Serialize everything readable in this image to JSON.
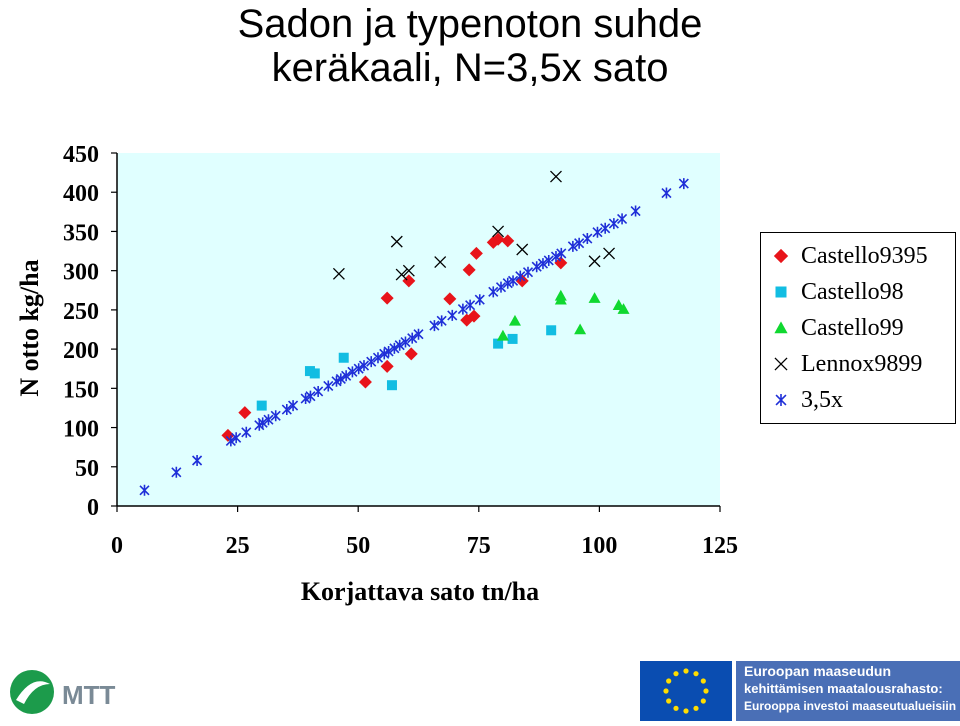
{
  "chart_data": {
    "type": "scatter",
    "title": [
      "Sadon ja typenoton suhde",
      "keräkaali, N=3,5x sato"
    ],
    "xlabel": "Korjattava sato tn/ha",
    "ylabel": "N otto kg/ha",
    "xlim": [
      0,
      125
    ],
    "ylim": [
      0,
      450
    ],
    "xticks": [
      "0",
      "25",
      "50",
      "75",
      "100",
      "125"
    ],
    "yticks": [
      "0",
      "50",
      "100",
      "150",
      "200",
      "250",
      "300",
      "350",
      "400",
      "450"
    ],
    "plot_background": "#e0ffff",
    "legend_position": "right",
    "series": [
      {
        "name": "Castello9395",
        "marker": "diamond",
        "color": "#e8141a",
        "points": [
          [
            23,
            90
          ],
          [
            26.5,
            119
          ],
          [
            51.5,
            158
          ],
          [
            56,
            178
          ],
          [
            56,
            265
          ],
          [
            60.5,
            287
          ],
          [
            61,
            194
          ],
          [
            69,
            264
          ],
          [
            72.5,
            237
          ],
          [
            73,
            301
          ],
          [
            74,
            242
          ],
          [
            74.5,
            322
          ],
          [
            78,
            336
          ],
          [
            79,
            340
          ],
          [
            81,
            338
          ],
          [
            84,
            287
          ],
          [
            92,
            310
          ]
        ]
      },
      {
        "name": "Castello98",
        "marker": "square",
        "color": "#12bde2",
        "points": [
          [
            30,
            128
          ],
          [
            40,
            172
          ],
          [
            41,
            169
          ],
          [
            47,
            189
          ],
          [
            57,
            154
          ],
          [
            79,
            207
          ],
          [
            82,
            213
          ],
          [
            90,
            224
          ]
        ]
      },
      {
        "name": "Castello99",
        "marker": "triangle",
        "color": "#10d830",
        "points": [
          [
            80,
            217
          ],
          [
            82.5,
            236
          ],
          [
            92,
            268
          ],
          [
            92,
            263
          ],
          [
            96,
            225
          ],
          [
            99,
            265
          ],
          [
            104,
            256
          ],
          [
            105,
            251
          ]
        ]
      },
      {
        "name": "Lennox9899",
        "marker": "x",
        "color": "#000000",
        "points": [
          [
            46,
            296
          ],
          [
            58,
            337
          ],
          [
            59,
            295
          ],
          [
            60.5,
            300
          ],
          [
            67,
            311
          ],
          [
            79,
            350
          ],
          [
            84,
            327
          ],
          [
            91,
            420
          ],
          [
            99,
            312
          ],
          [
            102,
            322
          ]
        ]
      },
      {
        "name": "3,5x",
        "marker": "asterisk",
        "color": "#1f2fd8",
        "points": [
          [
            5.7,
            20
          ],
          [
            12.3,
            43
          ],
          [
            16.6,
            58
          ],
          [
            23.6,
            83
          ],
          [
            24.7,
            87
          ],
          [
            26.8,
            94
          ],
          [
            29.5,
            103
          ],
          [
            30.2,
            106
          ],
          [
            31.4,
            110
          ],
          [
            32.9,
            115
          ],
          [
            35.2,
            123
          ],
          [
            36.5,
            128
          ],
          [
            39.1,
            137
          ],
          [
            40.1,
            140
          ],
          [
            41.7,
            146
          ],
          [
            43.8,
            153
          ],
          [
            45.5,
            159
          ],
          [
            46.4,
            162
          ],
          [
            47.5,
            166
          ],
          [
            48.8,
            171
          ],
          [
            50.1,
            175
          ],
          [
            51.2,
            179
          ],
          [
            52.7,
            184
          ],
          [
            54.1,
            189
          ],
          [
            55.4,
            194
          ],
          [
            56.3,
            197
          ],
          [
            57.5,
            201
          ],
          [
            58.6,
            205
          ],
          [
            59.8,
            209
          ],
          [
            61.2,
            214
          ],
          [
            62.5,
            219
          ],
          [
            65.8,
            230
          ],
          [
            67.3,
            236
          ],
          [
            69.5,
            243
          ],
          [
            71.7,
            251
          ],
          [
            73.2,
            256
          ],
          [
            75.2,
            263
          ],
          [
            78,
            273
          ],
          [
            79.6,
            279
          ],
          [
            81,
            284
          ],
          [
            82.1,
            287
          ],
          [
            83.6,
            293
          ],
          [
            85.2,
            298
          ],
          [
            87,
            305
          ],
          [
            88.3,
            309
          ],
          [
            89.5,
            313
          ],
          [
            91,
            318
          ],
          [
            92.1,
            322
          ],
          [
            94.5,
            331
          ],
          [
            95.8,
            335
          ],
          [
            97.5,
            341
          ],
          [
            99.6,
            349
          ],
          [
            101.2,
            354
          ],
          [
            103,
            360
          ],
          [
            104.7,
            366
          ],
          [
            107.5,
            376
          ],
          [
            113.9,
            399
          ],
          [
            117.5,
            411
          ]
        ]
      }
    ]
  },
  "logos": {
    "mtt": "MTT",
    "eu_line1": "Euroopan maaseudun",
    "eu_line2": "kehittämisen maatalousrahasto:",
    "eu_line3": "Eurooppa investoi maaseutualueisiin"
  }
}
